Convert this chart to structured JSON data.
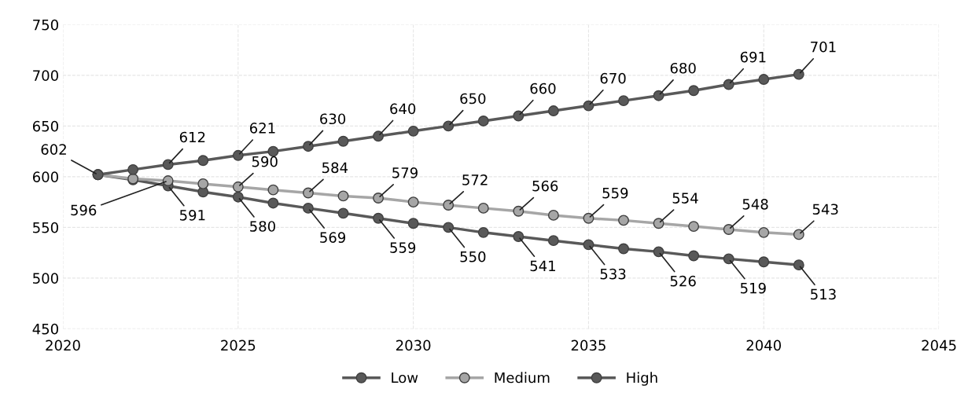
{
  "chart_data": {
    "type": "line",
    "x": [
      2021,
      2022,
      2023,
      2024,
      2025,
      2026,
      2027,
      2028,
      2029,
      2030,
      2031,
      2032,
      2033,
      2034,
      2035,
      2036,
      2037,
      2038,
      2039,
      2040,
      2041
    ],
    "xlim": [
      2020,
      2045
    ],
    "xticks": [
      2020,
      2025,
      2030,
      2035,
      2040,
      2045
    ],
    "ylim": [
      450,
      750
    ],
    "yticks": [
      450,
      500,
      550,
      600,
      650,
      700,
      750
    ],
    "grid": true,
    "legend": "bottom",
    "marker": "circle",
    "line_style": "solid",
    "series": [
      {
        "name": "Low",
        "color": "#595959",
        "values": [
          602,
          597,
          591,
          585,
          580,
          574,
          569,
          564,
          559,
          554,
          550,
          545,
          541,
          537,
          533,
          529,
          526,
          522,
          519,
          516,
          513
        ],
        "value_labels": [
          null,
          null,
          "591",
          null,
          "580",
          null,
          "569",
          null,
          "559",
          null,
          "550",
          null,
          "541",
          null,
          "533",
          null,
          "526",
          null,
          "519",
          null,
          "513"
        ]
      },
      {
        "name": "Medium",
        "color": "#a6a6a6",
        "values": [
          602,
          598,
          596,
          593,
          590,
          587,
          584,
          581,
          579,
          575,
          572,
          569,
          566,
          562,
          559,
          557,
          554,
          551,
          548,
          545,
          543
        ],
        "value_labels": [
          null,
          null,
          "596",
          null,
          "590",
          null,
          "584",
          null,
          "579",
          null,
          "572",
          null,
          "566",
          null,
          "559",
          null,
          "554",
          null,
          "548",
          null,
          "543"
        ]
      },
      {
        "name": "High",
        "color": "#595959",
        "values": [
          602,
          607,
          612,
          616,
          621,
          625,
          630,
          635,
          640,
          645,
          650,
          655,
          660,
          665,
          670,
          675,
          680,
          685,
          691,
          696,
          701
        ],
        "value_labels": [
          "602",
          null,
          "612",
          null,
          "621",
          null,
          "630",
          null,
          "640",
          null,
          "650",
          null,
          "660",
          null,
          "670",
          null,
          "680",
          null,
          "691",
          null,
          "701"
        ]
      }
    ]
  }
}
